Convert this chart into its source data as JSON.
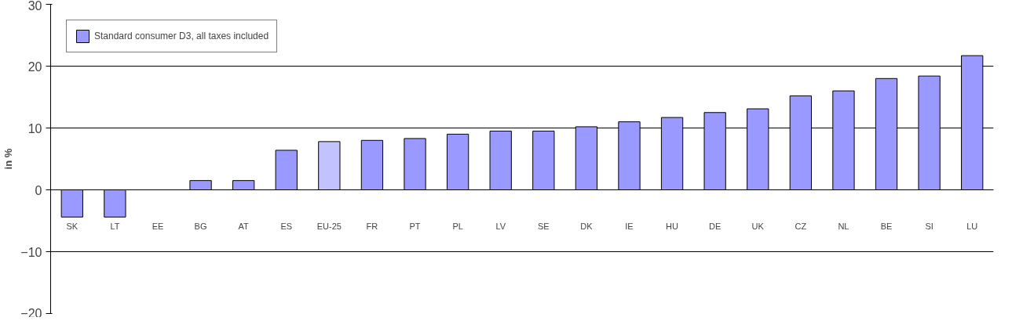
{
  "chart_data": {
    "type": "bar",
    "ylabel": "in %",
    "categories": [
      "SK",
      "LT",
      "EE",
      "BG",
      "AT",
      "ES",
      "EU-25",
      "FR",
      "PT",
      "PL",
      "LV",
      "SE",
      "DK",
      "IE",
      "HU",
      "DE",
      "UK",
      "CZ",
      "NL",
      "BE",
      "SI",
      "LU"
    ],
    "series": [
      {
        "name": "Standard consumer D3, all taxes included",
        "color": "#9999ff",
        "colors": [
          "#9999ff",
          "#9999ff",
          "#9999ff",
          "#9999ff",
          "#9999ff",
          "#9999ff",
          "#c2c2ff",
          "#9999ff",
          "#9999ff",
          "#9999ff",
          "#9999ff",
          "#9999ff",
          "#9999ff",
          "#9999ff",
          "#9999ff",
          "#9999ff",
          "#9999ff",
          "#9999ff",
          "#9999ff",
          "#9999ff",
          "#9999ff",
          "#9999ff"
        ],
        "values": [
          -4.4,
          -4.4,
          null,
          1.5,
          1.5,
          6.4,
          7.8,
          8.0,
          8.3,
          9.0,
          9.5,
          9.5,
          10.2,
          11.0,
          11.7,
          12.5,
          13.1,
          15.2,
          16.0,
          18.0,
          18.4,
          21.7
        ]
      }
    ],
    "ylim": [
      -20,
      30
    ],
    "yticks": [
      -20,
      -10,
      0,
      10,
      20,
      30
    ],
    "grid": "y",
    "legend": "top left"
  }
}
